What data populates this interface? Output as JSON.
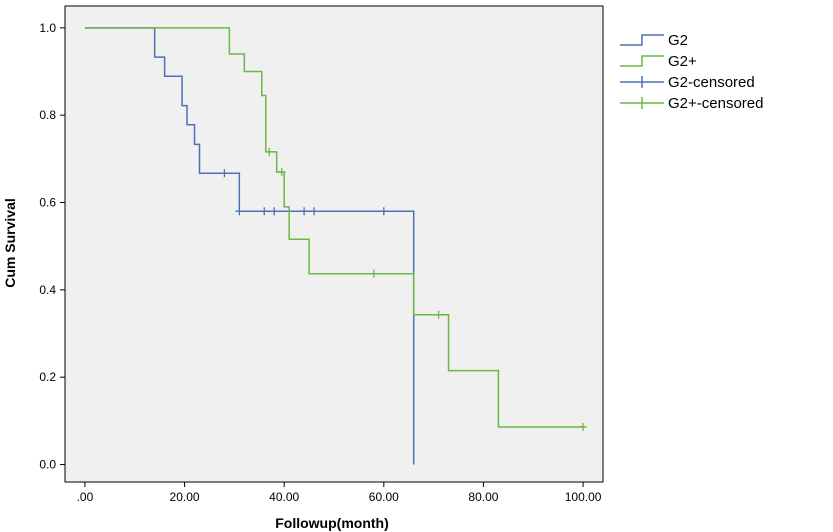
{
  "chart_data": {
    "type": "line",
    "subtype": "kaplan-meier-step",
    "title": "",
    "xlabel": "Followup(month)",
    "ylabel": "Cum Survival",
    "xlim": [
      -4,
      104
    ],
    "ylim": [
      -0.04,
      1.05
    ],
    "x_ticks": [
      0,
      20,
      40,
      60,
      80,
      100
    ],
    "x_tick_labels": [
      ".00",
      "20.00",
      "40.00",
      "60.00",
      "80.00",
      "100.00"
    ],
    "y_ticks": [
      0,
      0.2,
      0.4,
      0.6,
      0.8,
      1.0
    ],
    "y_tick_labels": [
      "0.0",
      "0.2",
      "0.4",
      "0.6",
      "0.8",
      "1.0"
    ],
    "grid": false,
    "legend_position": "right",
    "plot_background": "#f0f0f0",
    "series": [
      {
        "name": "G2",
        "color": "#4a72b5",
        "steps": [
          [
            0,
            1.0
          ],
          [
            14,
            0.933
          ],
          [
            16,
            0.889
          ],
          [
            19.5,
            0.822
          ],
          [
            20.5,
            0.778
          ],
          [
            22,
            0.733
          ],
          [
            23,
            0.667
          ],
          [
            31,
            0.58
          ],
          [
            66,
            0.0
          ]
        ],
        "end_x": 66,
        "censored_label": "G2-censored",
        "censored": [
          [
            28,
            0.667
          ],
          [
            31,
            0.58
          ],
          [
            36,
            0.58
          ],
          [
            38,
            0.58
          ],
          [
            44,
            0.58
          ],
          [
            46,
            0.58
          ],
          [
            60,
            0.58
          ]
        ]
      },
      {
        "name": "G2+",
        "color": "#6ab847",
        "steps": [
          [
            0,
            1.0
          ],
          [
            29,
            0.94
          ],
          [
            32,
            0.9
          ],
          [
            35.5,
            0.845
          ],
          [
            36.3,
            0.716
          ],
          [
            38.5,
            0.67
          ],
          [
            40,
            0.59
          ],
          [
            41,
            0.516
          ],
          [
            45,
            0.437
          ],
          [
            66,
            0.343
          ],
          [
            73,
            0.215
          ],
          [
            83,
            0.086
          ]
        ],
        "end_x": 100,
        "censored_label": "G2+-censored",
        "censored": [
          [
            37,
            0.716
          ],
          [
            39.5,
            0.67
          ],
          [
            58,
            0.437
          ],
          [
            71,
            0.343
          ],
          [
            100,
            0.086
          ]
        ]
      }
    ]
  }
}
